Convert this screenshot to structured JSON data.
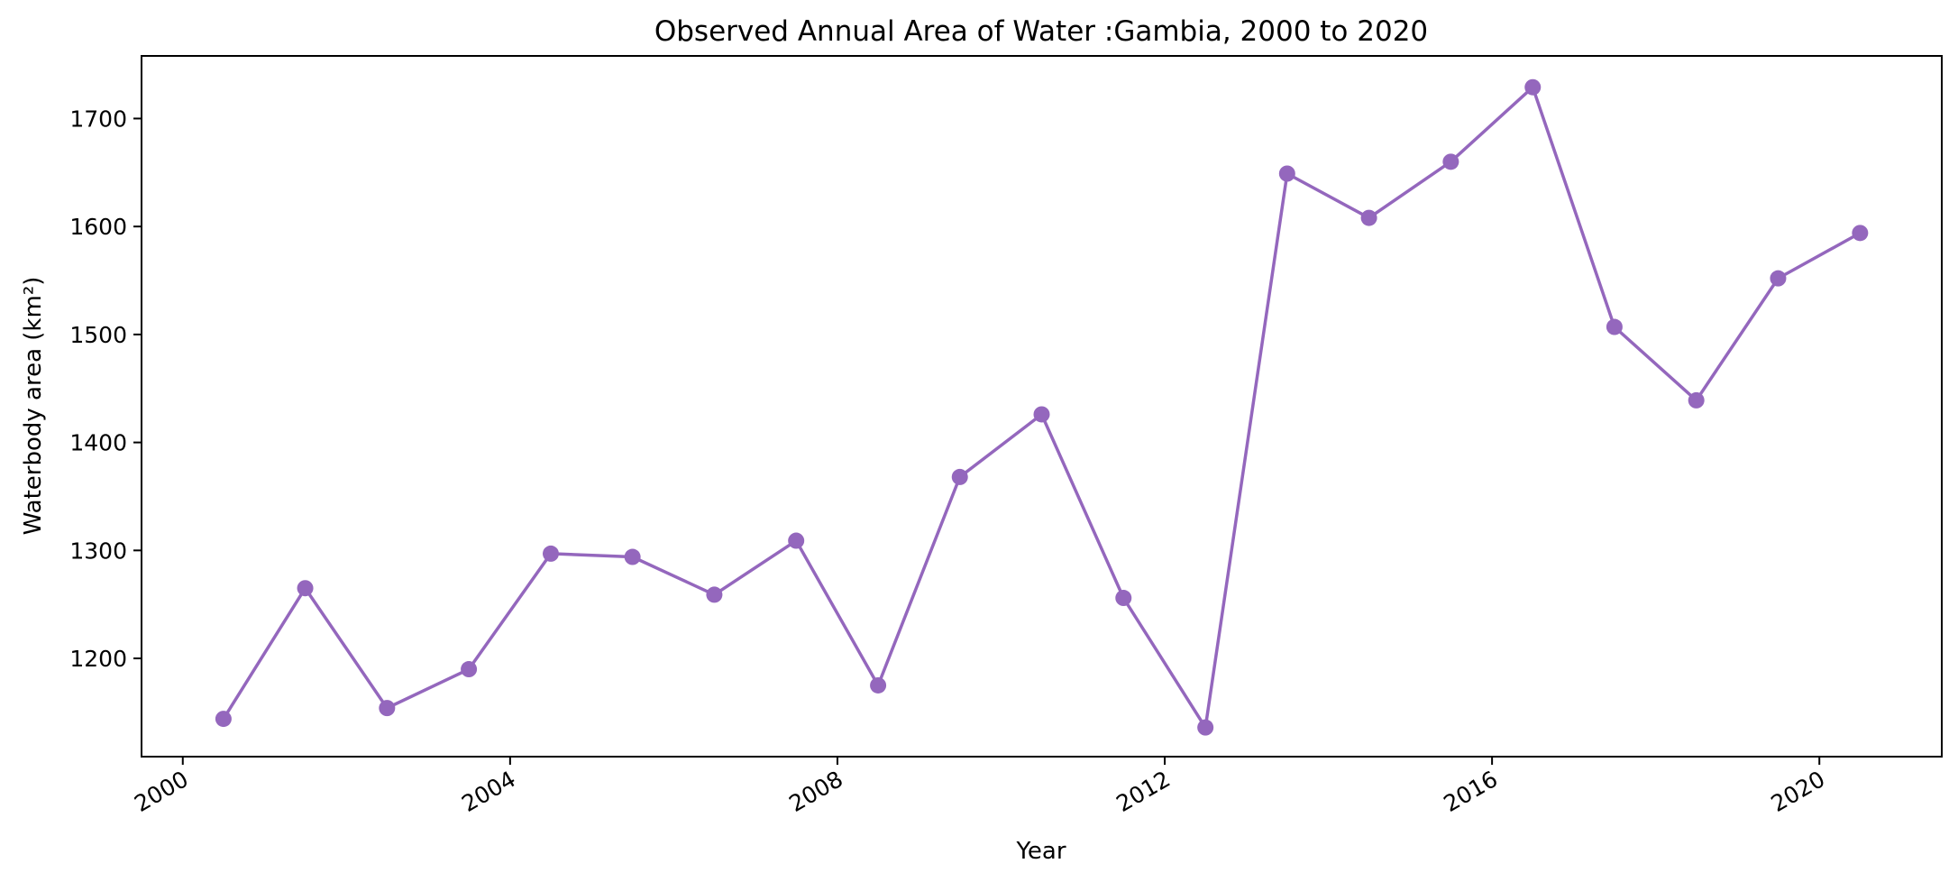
{
  "chart_data": {
    "type": "line",
    "title": "Observed Annual Area of Water :Gambia, 2000 to 2020",
    "xlabel": "Year",
    "ylabel": "Waterbody area (km²)",
    "x_tick_labels": [
      "2000",
      "2004",
      "2008",
      "2012",
      "2016",
      "2020"
    ],
    "y_tick_labels": [
      "1200",
      "1300",
      "1400",
      "1500",
      "1600",
      "1700"
    ],
    "x_ticks": [
      2000,
      2004,
      2008,
      2012,
      2016,
      2020
    ],
    "y_ticks": [
      1200,
      1300,
      1400,
      1500,
      1600,
      1700
    ],
    "xlim": [
      "1999-07-01",
      "2021-07-01"
    ],
    "ylim": [
      1109,
      1758
    ],
    "grid": false,
    "line_color": "#9467bd",
    "series": [
      {
        "x": [
          "2000-07-01",
          "2001-07-01",
          "2002-07-01",
          "2003-07-01",
          "2004-07-01",
          "2005-07-01",
          "2006-07-01",
          "2007-07-01",
          "2008-07-01",
          "2009-07-01",
          "2010-07-01",
          "2011-07-01",
          "2012-07-01",
          "2013-07-01",
          "2014-07-01",
          "2015-07-01",
          "2016-07-01",
          "2017-07-01",
          "2018-07-01",
          "2019-07-01",
          "2020-07-01"
        ],
        "values": [
          1144,
          1265,
          1154,
          1190,
          1297,
          1294,
          1259,
          1309,
          1175,
          1368,
          1426,
          1256,
          1136,
          1649,
          1608,
          1660,
          1729,
          1507,
          1439,
          1552,
          1594
        ]
      }
    ]
  }
}
